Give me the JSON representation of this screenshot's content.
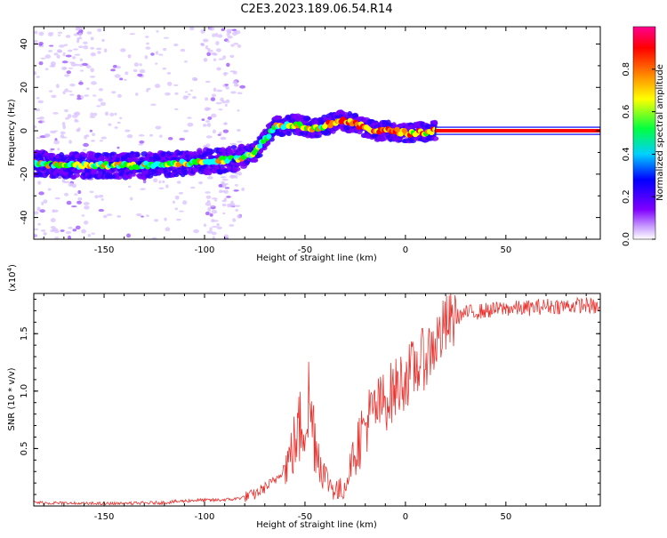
{
  "title": "C2E3.2023.189.06.54.R14",
  "chart_data": [
    {
      "type": "heatmap",
      "xlabel": "Height of straight line (km)",
      "ylabel": "Frequency (Hz)",
      "xlim": [
        -185,
        97
      ],
      "ylim": [
        -50,
        48
      ],
      "xticks": [
        -150,
        -100,
        -50,
        0,
        50
      ],
      "yticks": [
        -40,
        -20,
        0,
        20,
        40
      ],
      "colorbar": {
        "label": "Normalized spectral amplitude",
        "range": [
          0,
          1
        ],
        "ticks": [
          "0.0",
          "0.2",
          "0.4",
          "0.6",
          "0.8"
        ],
        "colors": [
          "#ffffff",
          "#8000ff",
          "#0000ff",
          "#00ffff",
          "#00ff00",
          "#ffff00",
          "#ff8000",
          "#ff0000",
          "#ff0080"
        ]
      },
      "ridge": {
        "x": [
          -185,
          -170,
          -150,
          -130,
          -110,
          -95,
          -85,
          -75,
          -65,
          -55,
          -45,
          -38,
          -32,
          -25,
          -15,
          -5,
          0,
          5,
          15,
          30,
          60,
          97
        ],
        "y": [
          -15,
          -16,
          -16,
          -16,
          -15,
          -14,
          -13,
          -10,
          2,
          3,
          1,
          3,
          5,
          3,
          0,
          0,
          -1,
          -1,
          0,
          0,
          0,
          0
        ]
      }
    },
    {
      "type": "line",
      "xlabel": "Height of straight line (km)",
      "ylabel": "SNR (10 * v/v)",
      "yscale_label": "(x10",
      "yscale_exp": "4",
      "xlim": [
        -185,
        97
      ],
      "ylim": [
        0,
        1.85
      ],
      "xticks": [
        -150,
        -100,
        -50,
        0,
        50
      ],
      "yticks": [
        0.5,
        1.0,
        1.5
      ],
      "line_color": "#e8332f",
      "series": [
        {
          "x": [
            -185,
            -160,
            -140,
            -120,
            -105,
            -95,
            -85,
            -75,
            -65,
            -58,
            -52,
            -48,
            -45,
            -42,
            -38,
            -33,
            -30,
            -26,
            -22,
            -18,
            -10,
            -5,
            0,
            5,
            10,
            15,
            20,
            25,
            30,
            40,
            50,
            60,
            70,
            80,
            90,
            97
          ],
          "y": [
            0.03,
            0.02,
            0.02,
            0.03,
            0.05,
            0.05,
            0.06,
            0.1,
            0.22,
            0.4,
            0.7,
            0.9,
            0.6,
            0.35,
            0.2,
            0.12,
            0.18,
            0.45,
            0.62,
            0.78,
            0.92,
            1.02,
            1.12,
            1.2,
            1.3,
            1.42,
            1.56,
            1.64,
            1.68,
            1.7,
            1.72,
            1.72,
            1.74,
            1.74,
            1.75,
            1.72
          ]
        }
      ]
    }
  ]
}
